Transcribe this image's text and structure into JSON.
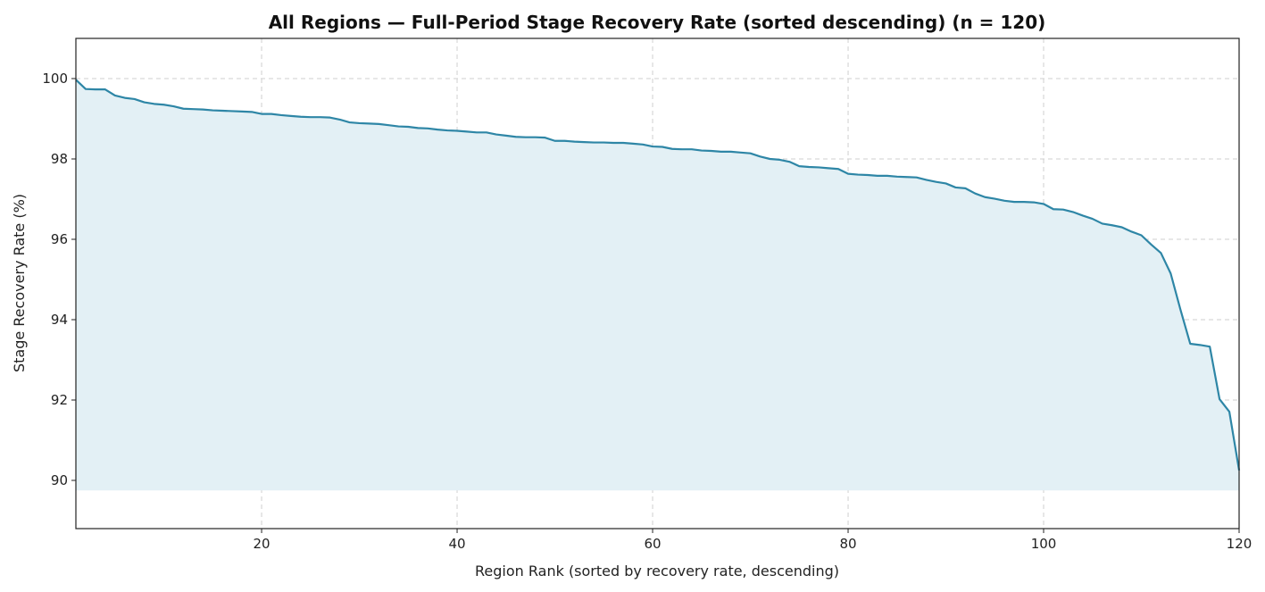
{
  "chart_data": {
    "type": "area",
    "title": "All Regions — Full-Period Stage Recovery Rate (sorted descending)  (n = 120)",
    "xlabel": "Region Rank (sorted by recovery rate, descending)",
    "ylabel": "Stage Recovery Rate (%)",
    "xlim": [
      1,
      120
    ],
    "ylim": [
      88.8,
      101
    ],
    "x_ticks": [
      20,
      40,
      60,
      80,
      100,
      120
    ],
    "y_ticks": [
      90,
      92,
      94,
      96,
      98,
      100
    ],
    "fill_baseline": 89.75,
    "grid": true,
    "colors": {
      "line": "#2e86a6",
      "fill": "#e3f0f5"
    },
    "series": [
      {
        "x": [
          1,
          2,
          3,
          4,
          5,
          6,
          7,
          8,
          9,
          10,
          11,
          12,
          13,
          14,
          15,
          16,
          17,
          18,
          19,
          20,
          21,
          22,
          23,
          24,
          25,
          26,
          27,
          28,
          29,
          30,
          31,
          32,
          33,
          34,
          35,
          36,
          37,
          38,
          39,
          40,
          41,
          42,
          43,
          44,
          45,
          46,
          47,
          48,
          49,
          50,
          51,
          52,
          53,
          54,
          55,
          56,
          57,
          58,
          59,
          60,
          61,
          62,
          63,
          64,
          65,
          66,
          67,
          68,
          69,
          70,
          71,
          72,
          73,
          74,
          75,
          76,
          77,
          78,
          79,
          80,
          81,
          82,
          83,
          84,
          85,
          86,
          87,
          88,
          89,
          90,
          91,
          92,
          93,
          94,
          95,
          96,
          97,
          98,
          99,
          100,
          101,
          102,
          103,
          104,
          105,
          106,
          107,
          108,
          109,
          110,
          111,
          112,
          113,
          114,
          115,
          116,
          117,
          118,
          119,
          120
        ],
        "values": [
          99.97,
          99.74,
          99.73,
          99.73,
          99.58,
          99.52,
          99.49,
          99.41,
          99.37,
          99.35,
          99.31,
          99.25,
          99.24,
          99.23,
          99.21,
          99.2,
          99.19,
          99.18,
          99.17,
          99.12,
          99.12,
          99.09,
          99.07,
          99.05,
          99.04,
          99.04,
          99.03,
          98.98,
          98.91,
          98.89,
          98.88,
          98.87,
          98.84,
          98.81,
          98.8,
          98.77,
          98.76,
          98.73,
          98.71,
          98.7,
          98.68,
          98.66,
          98.66,
          98.61,
          98.58,
          98.55,
          98.54,
          98.54,
          98.53,
          98.45,
          98.45,
          98.43,
          98.42,
          98.41,
          98.41,
          98.4,
          98.4,
          98.38,
          98.36,
          98.31,
          98.3,
          98.25,
          98.24,
          98.24,
          98.21,
          98.2,
          98.18,
          98.18,
          98.16,
          98.14,
          98.06,
          98.0,
          97.98,
          97.93,
          97.82,
          97.8,
          97.79,
          97.77,
          97.75,
          97.63,
          97.61,
          97.6,
          97.58,
          97.58,
          97.56,
          97.55,
          97.54,
          97.48,
          97.43,
          97.39,
          97.29,
          97.27,
          97.14,
          97.05,
          97.01,
          96.96,
          96.93,
          96.93,
          96.92,
          96.88,
          96.75,
          96.74,
          96.68,
          96.59,
          96.51,
          96.39,
          96.35,
          96.3,
          96.19,
          96.1,
          95.87,
          95.66,
          95.15,
          94.25,
          93.4,
          93.37,
          93.33,
          92.02,
          91.71,
          90.25
        ]
      }
    ]
  }
}
